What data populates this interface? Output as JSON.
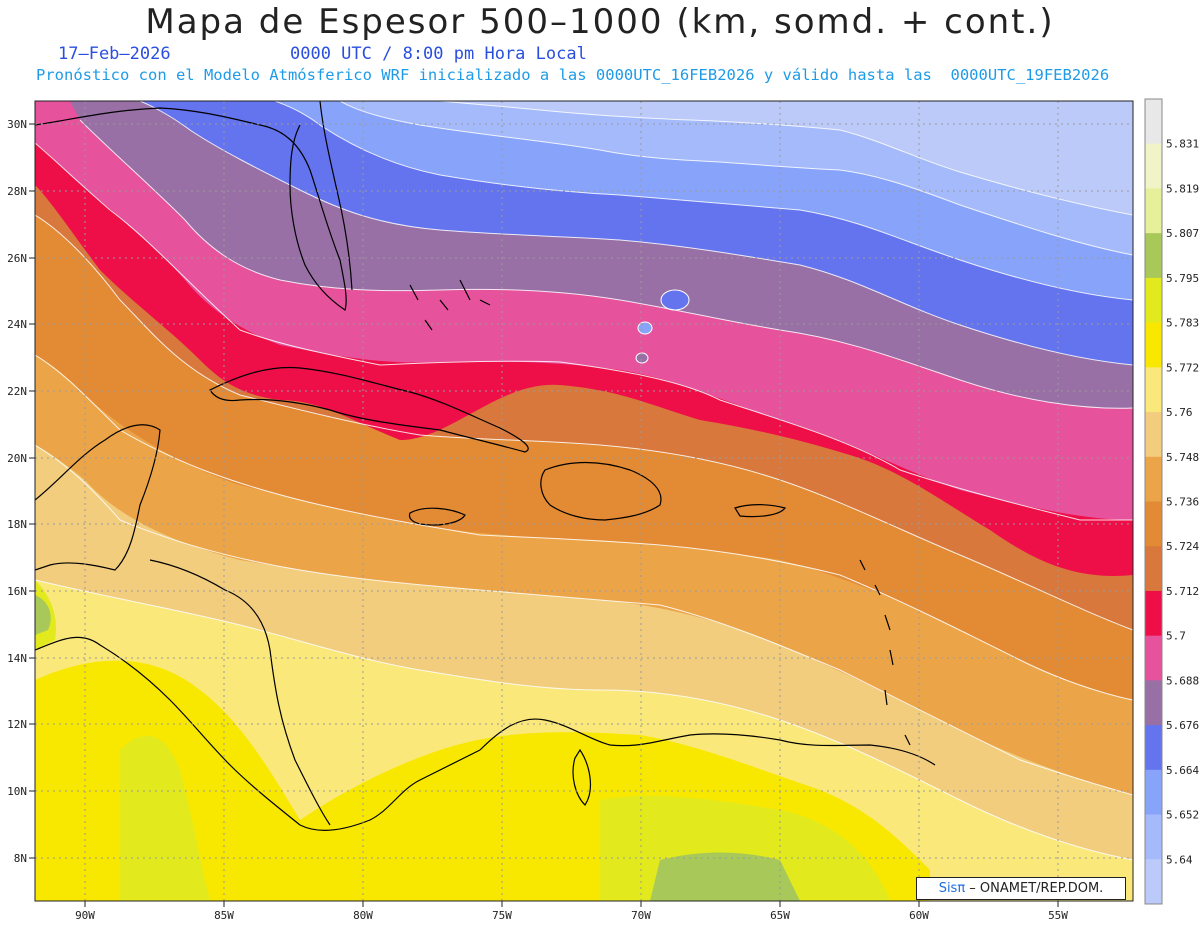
{
  "header": {
    "title": "Mapa de Espesor 500–1000 (km, somd. + cont.)",
    "date": "17–Feb–2026",
    "time": "0000 UTC / 8:00 pm Hora Local",
    "forecast": "Pronóstico con el Modelo Atmósferico WRF inicializado a las 0000UTC_16FEB2026 y válido hasta las  0000UTC_19FEB2026"
  },
  "axes": {
    "lat_labels": [
      "30N",
      "28N",
      "26N",
      "24N",
      "22N",
      "20N",
      "18N",
      "16N",
      "14N",
      "12N",
      "10N",
      "8N"
    ],
    "lon_labels": [
      "90W",
      "85W",
      "80W",
      "75W",
      "70W",
      "65W",
      "60W",
      "55W"
    ]
  },
  "colorbar": {
    "labels": [
      "5.831",
      "5.819",
      "5.807",
      "5.795",
      "5.783",
      "5.772",
      "5.76",
      "5.748",
      "5.736",
      "5.724",
      "5.712",
      "5.7",
      "5.688",
      "5.676",
      "5.664",
      "5.652",
      "5.64"
    ],
    "colors": [
      "#e8e8e8",
      "#f0f4c8",
      "#e6f09a",
      "#a8c85a",
      "#e2ea1e",
      "#f8e800",
      "#fae87a",
      "#f2cd7e",
      "#eca448",
      "#e28a34",
      "#d8783c",
      "#ee0e48",
      "#e6529c",
      "#9870a6",
      "#6474ee",
      "#88a4fa",
      "#a4bafa",
      "#bccafa"
    ]
  },
  "credit": {
    "sis": "Sisπ",
    "text": " – ONAMET/REP.DOM."
  }
}
